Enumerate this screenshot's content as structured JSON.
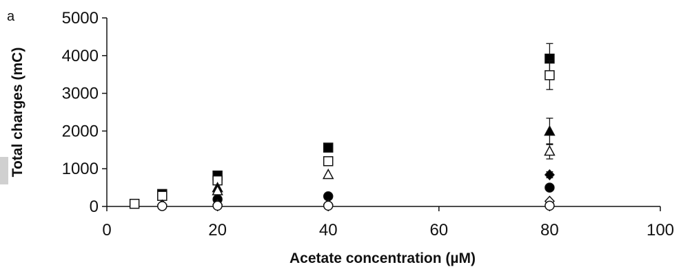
{
  "chart_data": {
    "type": "scatter",
    "panel_label": "a",
    "xlabel": "Acetate concentration (µM)",
    "ylabel": "Total charges (mC)",
    "xlim": [
      0,
      100
    ],
    "ylim": [
      0,
      5000
    ],
    "xticks": [
      0,
      20,
      40,
      60,
      80,
      100
    ],
    "yticks": [
      0,
      1000,
      2000,
      3000,
      4000,
      5000
    ],
    "grid": false,
    "series": [
      {
        "marker": "square",
        "fill": "#000000",
        "points": [
          {
            "x": 10,
            "y": 330
          },
          {
            "x": 20,
            "y": 820
          },
          {
            "x": 40,
            "y": 1560
          },
          {
            "x": 80,
            "y": 3920,
            "err": 400
          }
        ]
      },
      {
        "marker": "square",
        "fill": "#ffffff",
        "points": [
          {
            "x": 5,
            "y": 70
          },
          {
            "x": 10,
            "y": 280
          },
          {
            "x": 20,
            "y": 690
          },
          {
            "x": 40,
            "y": 1200
          },
          {
            "x": 80,
            "y": 3480,
            "err": 380
          }
        ]
      },
      {
        "marker": "triangle",
        "fill": "#000000",
        "points": [
          {
            "x": 20,
            "y": 490
          },
          {
            "x": 80,
            "y": 1990,
            "err": 350
          }
        ]
      },
      {
        "marker": "triangle",
        "fill": "#ffffff",
        "points": [
          {
            "x": 20,
            "y": 410
          },
          {
            "x": 40,
            "y": 840
          },
          {
            "x": 80,
            "y": 1460,
            "err": 200
          }
        ]
      },
      {
        "marker": "circle",
        "fill": "#000000",
        "points": [
          {
            "x": 20,
            "y": 190
          },
          {
            "x": 40,
            "y": 270
          },
          {
            "x": 80,
            "y": 500
          }
        ]
      },
      {
        "marker": "diamond",
        "fill": "#000000",
        "points": [
          {
            "x": 80,
            "y": 840,
            "err": 80
          }
        ]
      },
      {
        "marker": "diamond",
        "fill": "#ffffff",
        "points": [
          {
            "x": 10,
            "y": 40
          },
          {
            "x": 20,
            "y": 50
          },
          {
            "x": 40,
            "y": 50
          },
          {
            "x": 80,
            "y": 140
          }
        ]
      },
      {
        "marker": "circle",
        "fill": "#ffffff",
        "points": [
          {
            "x": 10,
            "y": 10
          },
          {
            "x": 20,
            "y": 20
          },
          {
            "x": 40,
            "y": 20
          },
          {
            "x": 80,
            "y": 20
          }
        ]
      }
    ]
  }
}
